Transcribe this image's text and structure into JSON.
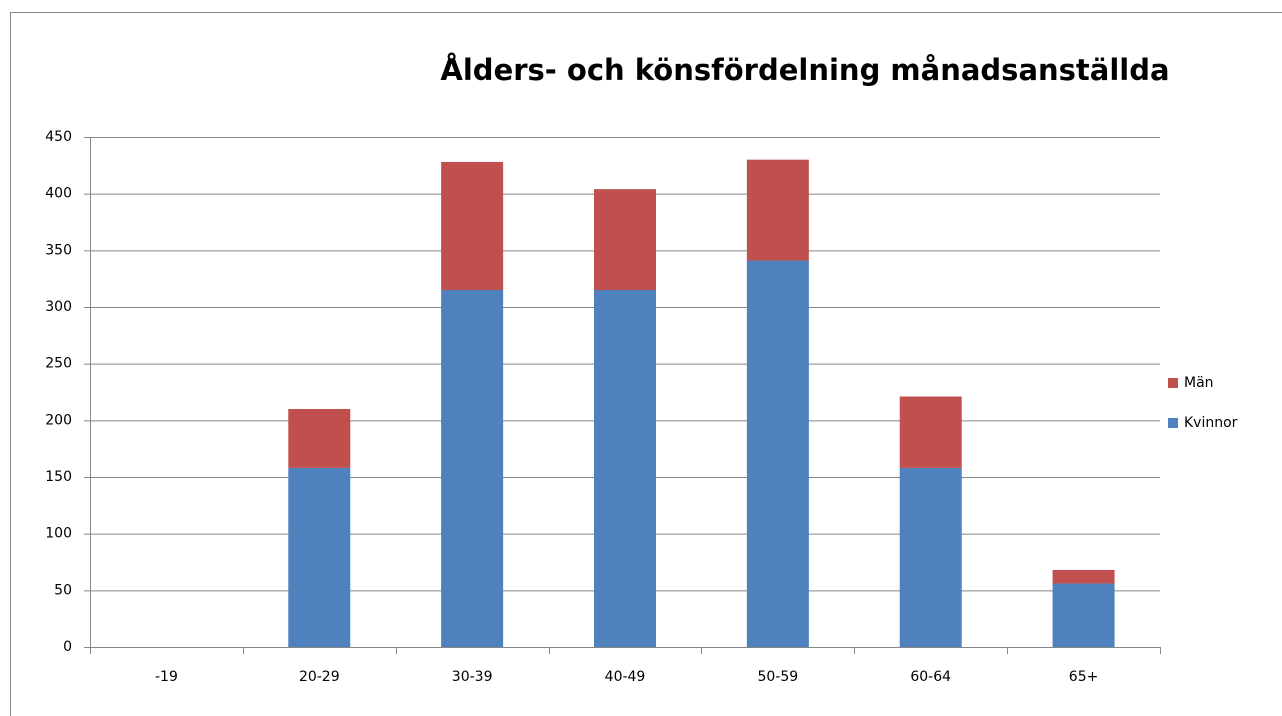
{
  "chart_data": {
    "type": "stacked_bar",
    "title": "Ålders-  och könsfördelning månadsanställda",
    "categories": [
      "-19",
      "20-29",
      "30-39",
      "40-49",
      "50-59",
      "60-64",
      "65+"
    ],
    "series": [
      {
        "name": "Kvinnor",
        "color": "#4f81bd",
        "values": [
          0,
          158,
          315,
          315,
          341,
          158,
          56
        ]
      },
      {
        "name": "Män",
        "color": "#c0504d",
        "values": [
          0,
          52,
          113,
          89,
          89,
          63,
          12
        ]
      }
    ],
    "ylim": [
      0,
      450
    ],
    "yticks": [
      0,
      50,
      100,
      150,
      200,
      250,
      300,
      350,
      400,
      450
    ],
    "grid": true,
    "legend": "right"
  }
}
